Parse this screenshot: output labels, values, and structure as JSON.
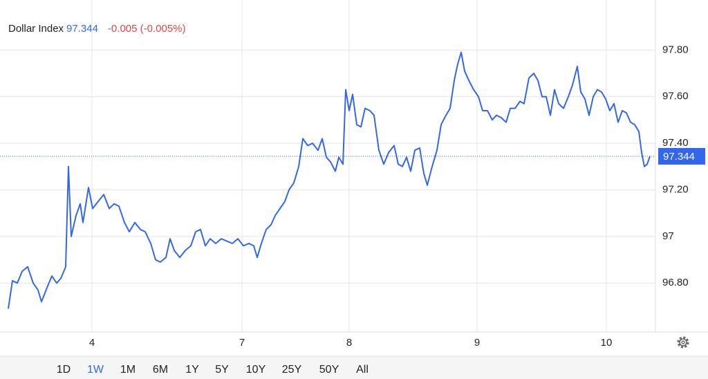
{
  "chart_data": {
    "type": "line",
    "title": "Dollar Index",
    "last_price": 97.344,
    "change": "-0.005 (-0.005%)",
    "color": "#3366ee",
    "x": [
      1.2,
      1.8,
      2.5,
      3.2,
      4.0,
      4.8,
      5.5,
      6.0,
      6.8,
      7.5,
      8.2,
      8.8,
      9.5,
      9.9,
      10.3,
      11.0,
      11.6,
      12.0,
      12.8,
      13.4,
      14.2,
      15.0,
      15.8,
      16.5,
      17.2,
      18.0,
      18.7,
      19.5,
      20.3,
      21.0,
      21.8,
      22.5,
      23.2,
      24.0,
      24.6,
      25.2,
      26.0,
      26.8,
      27.6,
      28.3,
      29.0,
      29.7,
      30.4,
      31.2,
      32.0,
      32.8,
      33.6,
      34.4,
      35.2,
      36.0,
      36.7,
      37.2,
      37.8,
      38.5,
      39.2,
      39.8,
      40.5,
      41.2,
      41.8,
      42.5,
      43.2,
      43.8,
      44.5,
      45.2,
      46.0,
      46.6,
      47.2,
      47.8,
      48.5,
      49.0,
      49.6,
      50.0,
      50.5,
      51.0,
      51.6,
      52.2,
      52.8,
      53.5,
      54.1,
      54.8,
      55.5,
      56.2,
      57.0,
      57.6,
      58.2,
      58.8,
      59.4,
      60.0,
      60.7,
      61.3,
      61.8,
      62.5,
      63.2,
      63.8,
      64.5,
      65.1,
      65.7,
      66.2,
      66.7,
      67.2,
      67.8,
      68.5,
      69.2,
      69.8,
      70.5,
      71.2,
      71.8,
      72.5,
      73.2,
      73.8,
      74.5,
      75.2,
      75.8,
      76.5,
      77.2,
      77.8,
      78.4,
      79.0,
      79.6,
      80.2,
      80.8,
      81.5,
      82.2,
      82.8,
      83.5,
      84.0,
      84.6,
      85.2,
      85.8,
      86.4,
      87.0,
      87.6,
      88.2,
      88.8,
      89.4,
      90.0,
      90.6,
      91.2,
      91.8,
      92.4,
      92.8,
      93.2,
      93.6,
      94.0
    ],
    "values": [
      96.69,
      96.81,
      96.8,
      96.85,
      96.87,
      96.8,
      96.77,
      96.72,
      96.78,
      96.83,
      96.8,
      96.82,
      96.87,
      97.3,
      97.0,
      97.09,
      97.14,
      97.06,
      97.21,
      97.12,
      97.15,
      97.18,
      97.12,
      97.14,
      97.13,
      97.06,
      97.02,
      97.06,
      97.03,
      97.02,
      96.97,
      96.9,
      96.89,
      96.91,
      96.99,
      96.94,
      96.91,
      96.94,
      96.96,
      97.02,
      97.03,
      96.96,
      96.99,
      96.97,
      96.99,
      96.98,
      96.97,
      96.99,
      96.96,
      96.97,
      96.96,
      96.91,
      96.97,
      97.03,
      97.05,
      97.09,
      97.12,
      97.15,
      97.2,
      97.23,
      97.3,
      97.42,
      97.39,
      97.4,
      97.37,
      97.42,
      97.34,
      97.32,
      97.28,
      97.34,
      97.31,
      97.63,
      97.54,
      97.61,
      97.48,
      97.47,
      97.55,
      97.54,
      97.52,
      97.37,
      97.31,
      97.36,
      97.39,
      97.31,
      97.3,
      97.34,
      97.28,
      97.37,
      97.38,
      97.27,
      97.22,
      97.3,
      97.37,
      97.48,
      97.52,
      97.55,
      97.67,
      97.74,
      97.79,
      97.71,
      97.67,
      97.63,
      97.6,
      97.54,
      97.54,
      97.5,
      97.52,
      97.51,
      97.49,
      97.55,
      97.55,
      97.58,
      97.57,
      97.68,
      97.7,
      97.67,
      97.6,
      97.6,
      97.52,
      97.63,
      97.57,
      97.55,
      97.6,
      97.65,
      97.73,
      97.62,
      97.59,
      97.52,
      97.6,
      97.63,
      97.62,
      97.59,
      97.54,
      97.57,
      97.49,
      97.54,
      97.53,
      97.49,
      97.48,
      97.45,
      97.36,
      97.3,
      97.31,
      97.344
    ],
    "xlim": [
      0,
      94.8
    ],
    "xticks": [
      {
        "value": 13.3,
        "label": "4"
      },
      {
        "value": 35.0,
        "label": "7"
      },
      {
        "value": 50.5,
        "label": "8"
      },
      {
        "value": 69.0,
        "label": "9"
      },
      {
        "value": 87.7,
        "label": "10"
      }
    ],
    "ylim": [
      96.59,
      98.0
    ],
    "yticks": [
      {
        "value": 96.8,
        "label": "96.80"
      },
      97,
      {
        "value": 97.2,
        "label": "97.20"
      },
      {
        "value": 97.4,
        "label": "97.40"
      },
      {
        "value": 97.6,
        "label": "97.60"
      },
      {
        "value": 97.8,
        "label": "97.80"
      }
    ],
    "grid": true,
    "range_buttons": [
      "1D",
      "1W",
      "1M",
      "6M",
      "1Y",
      "5Y",
      "10Y",
      "25Y",
      "50Y",
      "All"
    ],
    "selected_range": 1
  }
}
